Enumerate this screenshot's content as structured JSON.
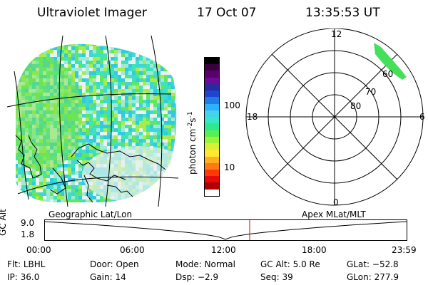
{
  "header": {
    "instrument": "Ultraviolet Imager",
    "date": "17 Oct 07",
    "time": "13:35:53 UT"
  },
  "colorbar": {
    "unit": "photon cm",
    "exp1": "-2",
    "unit2": "s",
    "exp2": "-1",
    "ticks": [
      "100",
      "10"
    ],
    "colors": [
      "#000000",
      "#3b003f",
      "#5a0068",
      "#6e0a9a",
      "#2a2aa0",
      "#1f44d0",
      "#1f7de6",
      "#2cb1ff",
      "#44d3ea",
      "#38e6c8",
      "#30e890",
      "#58f050",
      "#9cf43a",
      "#d8f035",
      "#ffe830",
      "#ffb020",
      "#ff7a10",
      "#ff3a08",
      "#e60a0a",
      "#b00000",
      "#ffffff"
    ]
  },
  "polar": {
    "labels": [
      "12",
      "6",
      "0",
      "18"
    ],
    "rings": [
      "60",
      "70",
      "80"
    ],
    "colors": {
      "aurora": "#44e05a"
    }
  },
  "altitude_plot": {
    "left_title": "Geographic Lat/Lon",
    "right_title": "Apex MLat/MLT",
    "ylabel": "GC Alt",
    "ymax_label": "9.0",
    "ymin_label": "1.8",
    "xticks": [
      "00:00",
      "06:00",
      "12:00",
      "18:00",
      "23:59"
    ],
    "current_time_marker": "13:35:53",
    "colors": {
      "marker": "#d00000",
      "curve": "#000000"
    }
  },
  "info_rows": [
    [
      {
        "label": "Flt:",
        "value": "LBHL"
      },
      {
        "label": "Door:",
        "value": "Open"
      },
      {
        "label": "Mode:",
        "value": "Normal"
      },
      {
        "label": "GC Alt:",
        "value": "5.0 Re"
      },
      {
        "label": "GLat:",
        "value": "−52.8"
      }
    ],
    [
      {
        "label": "IP:",
        "value": "36.0"
      },
      {
        "label": "Gain:",
        "value": "14"
      },
      {
        "label": "Dsp:",
        "value": "−2.9"
      },
      {
        "label": "Seq:",
        "value": "39"
      },
      {
        "label": "GLon:",
        "value": "277.9"
      }
    ]
  ],
  "map": {
    "colors": {
      "land": "#000000",
      "grid": "#000000"
    }
  }
}
